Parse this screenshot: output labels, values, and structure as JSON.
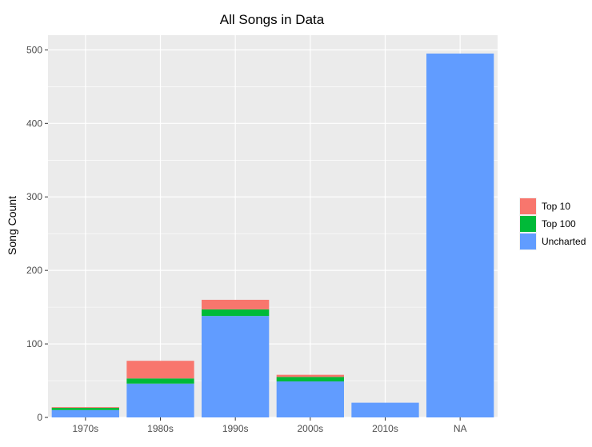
{
  "chart_data": {
    "type": "bar",
    "stacked": true,
    "title": "All Songs in Data",
    "xlabel": "",
    "ylabel": "Song Count",
    "categories": [
      "1970s",
      "1980s",
      "1990s",
      "2000s",
      "2010s",
      "NA"
    ],
    "series": [
      {
        "name": "Uncharted",
        "color": "#619CFF",
        "values": [
          10,
          46,
          138,
          49,
          20,
          495
        ]
      },
      {
        "name": "Top 100",
        "color": "#00BA38",
        "values": [
          3,
          7,
          9,
          6,
          0,
          0
        ]
      },
      {
        "name": "Top 10",
        "color": "#F8766D",
        "values": [
          1,
          24,
          13,
          3,
          0,
          0
        ]
      }
    ],
    "legend_order": [
      "Top 10",
      "Top 100",
      "Uncharted"
    ],
    "ylim": [
      0,
      520
    ],
    "yticks": [
      0,
      100,
      200,
      300,
      400,
      500
    ],
    "grid": true,
    "legend_position": "right",
    "panel_background": "#EBEBEB",
    "grid_color": "#FFFFFF"
  }
}
